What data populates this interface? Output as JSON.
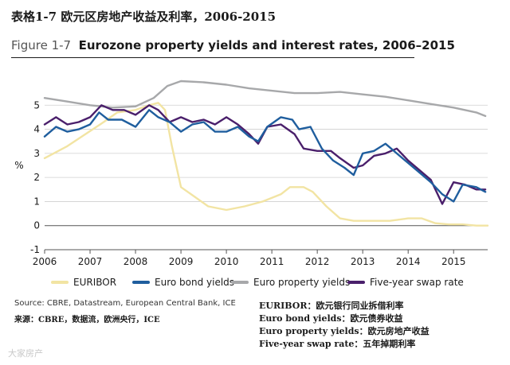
{
  "header": {
    "cn_title": "表格1-7  欧元区房地产收益及利率，2006-2015",
    "figure_label": "Figure 1-7",
    "figure_title": "Eurozone property yields and interest rates, 2006–2015"
  },
  "footer": {
    "source": "Source: CBRE, Datastream, European Central Bank, ICE",
    "source_cn": "来源：CBRE，数据流，欧洲央行，ICE",
    "gloss": [
      "EURIBOR：欧元银行同业拆借利率",
      "Euro bond yields：欧元债券收益",
      "Euro property yields：欧元房地产收益",
      "Five-year swap rate：五年掉期利率"
    ],
    "watermark": "大家房产"
  },
  "chart_data": {
    "type": "line",
    "title": "Eurozone property yields and interest rates, 2006–2015",
    "xlabel": "",
    "ylabel": "%",
    "xlim": [
      2006,
      2015.75
    ],
    "ylim": [
      -1,
      6
    ],
    "yticks": [
      -1,
      0,
      1,
      2,
      3,
      4,
      5
    ],
    "xticks": [
      2006,
      2007,
      2008,
      2009,
      2010,
      2011,
      2012,
      2013,
      2014,
      2015
    ],
    "ytick_labels": [
      "-1",
      "0",
      "1",
      "2",
      "3",
      "4",
      "5"
    ],
    "xtick_labels": [
      "2006",
      "2007",
      "2008",
      "2009",
      "2010",
      "2011",
      "2012",
      "2013",
      "2014",
      "2015"
    ],
    "grid": "horizontal",
    "legend_position": "bottom",
    "series": [
      {
        "name": "EURIBOR",
        "color": "#f2e4a3",
        "points": [
          [
            2006.0,
            2.8
          ],
          [
            2006.5,
            3.3
          ],
          [
            2006.9,
            3.8
          ],
          [
            2007.3,
            4.3
          ],
          [
            2007.6,
            4.7
          ],
          [
            2008.0,
            4.8
          ],
          [
            2008.3,
            5.0
          ],
          [
            2008.5,
            5.1
          ],
          [
            2008.65,
            4.8
          ],
          [
            2008.8,
            3.3
          ],
          [
            2009.0,
            1.6
          ],
          [
            2009.3,
            1.2
          ],
          [
            2009.6,
            0.8
          ],
          [
            2010.0,
            0.65
          ],
          [
            2010.4,
            0.8
          ],
          [
            2010.8,
            1.0
          ],
          [
            2011.2,
            1.3
          ],
          [
            2011.4,
            1.6
          ],
          [
            2011.7,
            1.6
          ],
          [
            2011.9,
            1.4
          ],
          [
            2012.2,
            0.8
          ],
          [
            2012.5,
            0.3
          ],
          [
            2012.8,
            0.2
          ],
          [
            2013.2,
            0.2
          ],
          [
            2013.6,
            0.2
          ],
          [
            2014.0,
            0.3
          ],
          [
            2014.3,
            0.3
          ],
          [
            2014.6,
            0.1
          ],
          [
            2014.9,
            0.05
          ],
          [
            2015.2,
            0.05
          ],
          [
            2015.5,
            0.0
          ],
          [
            2015.75,
            0.0
          ]
        ]
      },
      {
        "name": "Euro bond yields",
        "color": "#1f5e9e",
        "points": [
          [
            2006.0,
            3.7
          ],
          [
            2006.25,
            4.1
          ],
          [
            2006.5,
            3.9
          ],
          [
            2006.75,
            4.0
          ],
          [
            2007.0,
            4.2
          ],
          [
            2007.2,
            4.7
          ],
          [
            2007.4,
            4.4
          ],
          [
            2007.7,
            4.4
          ],
          [
            2008.0,
            4.1
          ],
          [
            2008.3,
            4.8
          ],
          [
            2008.5,
            4.5
          ],
          [
            2008.75,
            4.3
          ],
          [
            2009.0,
            3.9
          ],
          [
            2009.25,
            4.2
          ],
          [
            2009.5,
            4.3
          ],
          [
            2009.75,
            3.9
          ],
          [
            2010.0,
            3.9
          ],
          [
            2010.25,
            4.1
          ],
          [
            2010.5,
            3.7
          ],
          [
            2010.7,
            3.5
          ],
          [
            2010.9,
            4.1
          ],
          [
            2011.2,
            4.5
          ],
          [
            2011.45,
            4.4
          ],
          [
            2011.6,
            4.0
          ],
          [
            2011.85,
            4.1
          ],
          [
            2012.1,
            3.2
          ],
          [
            2012.35,
            2.7
          ],
          [
            2012.6,
            2.4
          ],
          [
            2012.8,
            2.1
          ],
          [
            2013.0,
            3.0
          ],
          [
            2013.25,
            3.1
          ],
          [
            2013.5,
            3.4
          ],
          [
            2013.75,
            3.0
          ],
          [
            2014.0,
            2.6
          ],
          [
            2014.25,
            2.2
          ],
          [
            2014.5,
            1.8
          ],
          [
            2014.75,
            1.3
          ],
          [
            2015.0,
            1.0
          ],
          [
            2015.2,
            1.7
          ],
          [
            2015.5,
            1.6
          ],
          [
            2015.7,
            1.4
          ]
        ]
      },
      {
        "name": "Euro property yields",
        "color": "#a7a8aa",
        "points": [
          [
            2006.0,
            5.3
          ],
          [
            2006.5,
            5.15
          ],
          [
            2007.0,
            5.0
          ],
          [
            2007.5,
            4.9
          ],
          [
            2008.0,
            4.95
          ],
          [
            2008.4,
            5.3
          ],
          [
            2008.7,
            5.8
          ],
          [
            2009.0,
            6.0
          ],
          [
            2009.5,
            5.95
          ],
          [
            2010.0,
            5.85
          ],
          [
            2010.5,
            5.7
          ],
          [
            2011.0,
            5.6
          ],
          [
            2011.5,
            5.5
          ],
          [
            2012.0,
            5.5
          ],
          [
            2012.5,
            5.55
          ],
          [
            2013.0,
            5.45
          ],
          [
            2013.5,
            5.35
          ],
          [
            2014.0,
            5.2
          ],
          [
            2014.5,
            5.05
          ],
          [
            2015.0,
            4.9
          ],
          [
            2015.5,
            4.7
          ],
          [
            2015.7,
            4.55
          ]
        ]
      },
      {
        "name": "Five-year swap rate",
        "color": "#4a1f6b",
        "points": [
          [
            2006.0,
            4.2
          ],
          [
            2006.25,
            4.5
          ],
          [
            2006.5,
            4.2
          ],
          [
            2006.75,
            4.3
          ],
          [
            2007.0,
            4.5
          ],
          [
            2007.25,
            5.0
          ],
          [
            2007.5,
            4.8
          ],
          [
            2007.75,
            4.8
          ],
          [
            2008.0,
            4.6
          ],
          [
            2008.3,
            5.0
          ],
          [
            2008.5,
            4.8
          ],
          [
            2008.75,
            4.3
          ],
          [
            2009.0,
            4.5
          ],
          [
            2009.25,
            4.3
          ],
          [
            2009.5,
            4.4
          ],
          [
            2009.75,
            4.2
          ],
          [
            2010.0,
            4.5
          ],
          [
            2010.25,
            4.2
          ],
          [
            2010.5,
            3.8
          ],
          [
            2010.7,
            3.4
          ],
          [
            2010.9,
            4.1
          ],
          [
            2011.2,
            4.2
          ],
          [
            2011.5,
            3.8
          ],
          [
            2011.7,
            3.2
          ],
          [
            2012.0,
            3.1
          ],
          [
            2012.3,
            3.1
          ],
          [
            2012.5,
            2.8
          ],
          [
            2012.8,
            2.4
          ],
          [
            2013.0,
            2.5
          ],
          [
            2013.25,
            2.9
          ],
          [
            2013.5,
            3.0
          ],
          [
            2013.75,
            3.2
          ],
          [
            2014.0,
            2.7
          ],
          [
            2014.25,
            2.3
          ],
          [
            2014.5,
            1.9
          ],
          [
            2014.75,
            0.9
          ],
          [
            2015.0,
            1.8
          ],
          [
            2015.25,
            1.7
          ],
          [
            2015.5,
            1.5
          ],
          [
            2015.7,
            1.5
          ]
        ]
      }
    ]
  }
}
